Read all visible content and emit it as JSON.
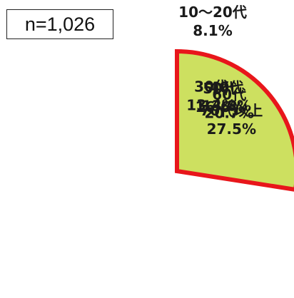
{
  "sample_size": "n=1,026",
  "chart_data": {
    "type": "pie",
    "categories": [
      "10～20代",
      "30代",
      "40代",
      "50代",
      "60代",
      "70代以上"
    ],
    "values": [
      8.1,
      13.4,
      13.8,
      16.6,
      20.7,
      27.5
    ],
    "value_labels": [
      "8.1%",
      "13.4%",
      "13.8%",
      "16.6%",
      "20.7%",
      "27.5%"
    ],
    "colors": [
      "#e2505a",
      "#f0a6ae",
      "#f39a3a",
      "#f9cf62",
      "#72c8a3",
      "#cde060"
    ],
    "highlight_color": "#e8161b",
    "highlighted_categories": [
      "60代",
      "70代以上"
    ],
    "start_angle_deg": 0,
    "direction": "clockwise"
  }
}
